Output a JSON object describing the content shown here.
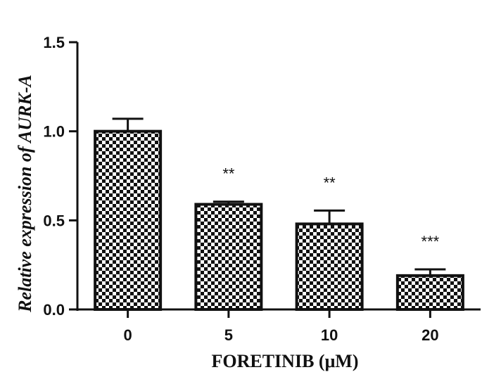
{
  "chart_data": {
    "type": "bar",
    "title": "",
    "xlabel": "FORETINIB (μM)",
    "ylabel": "Relative expression of AURK-A",
    "categories": [
      "0",
      "5",
      "10",
      "20"
    ],
    "values": [
      1.0,
      0.59,
      0.48,
      0.19
    ],
    "error_upper": [
      0.07,
      0.015,
      0.075,
      0.035
    ],
    "significance": [
      "",
      "**",
      "**",
      "***"
    ],
    "ylim": [
      0,
      1.5
    ],
    "yticks": [
      0.0,
      0.5,
      1.0,
      1.5
    ],
    "ytick_labels": [
      "0.0",
      "0.5",
      "1.0",
      "1.5"
    ],
    "grid": false,
    "bar_fill": "checkerboard",
    "colors": {
      "bar_dark": "#111111",
      "bar_light": "#ffffff",
      "axis": "#111111"
    }
  }
}
